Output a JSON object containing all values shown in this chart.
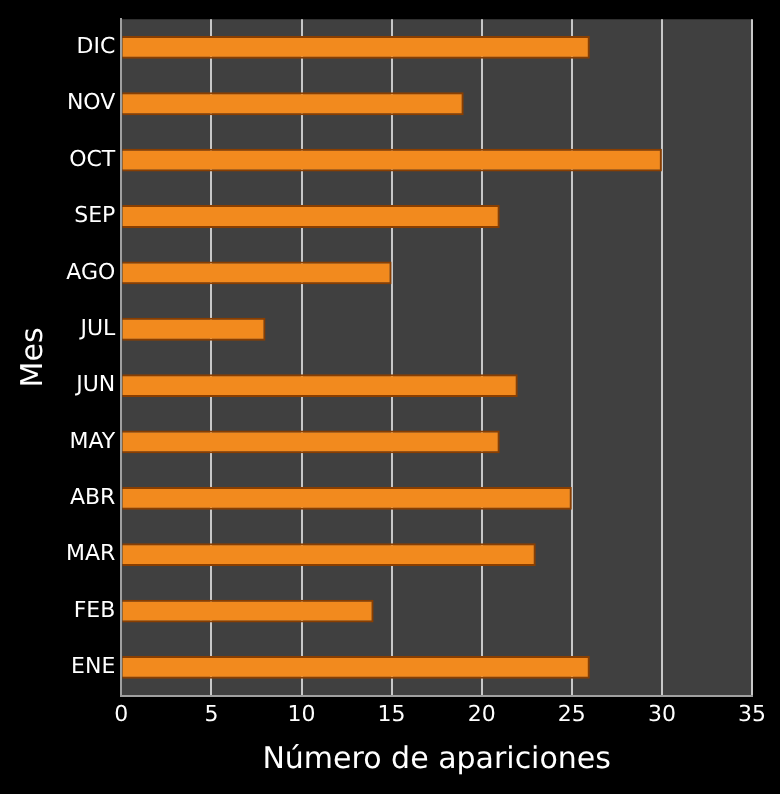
{
  "chart_data": {
    "type": "bar",
    "orientation": "horizontal",
    "xlabel": "Número de apariciones",
    "ylabel": "Mes",
    "categories": [
      "DIC",
      "NOV",
      "OCT",
      "SEP",
      "AGO",
      "JUL",
      "JUN",
      "MAY",
      "ABR",
      "MAR",
      "FEB",
      "ENE"
    ],
    "values": [
      26,
      19,
      30,
      21,
      15,
      8,
      22,
      21,
      25,
      23,
      14,
      26
    ],
    "color": "#f28a1e",
    "xlim": [
      0,
      35
    ],
    "xticks": [
      0,
      5,
      10,
      15,
      20,
      25,
      30,
      35
    ],
    "grid": "x",
    "legend": false
  }
}
